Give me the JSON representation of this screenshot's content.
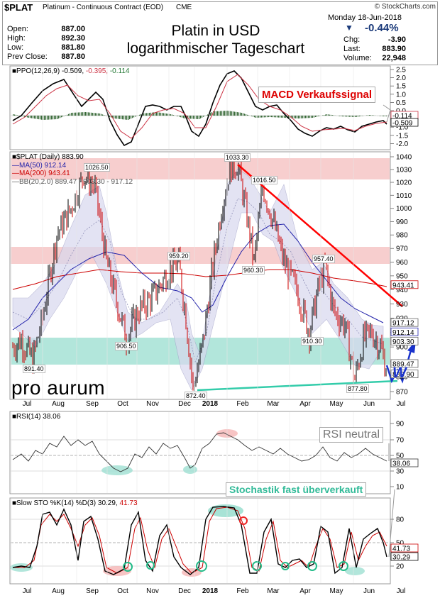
{
  "header": {
    "symbol": "$PLAT",
    "name": "Platinum - Continuous Contract (EOD)",
    "exchange": "CME",
    "copyright": "© StockCharts.com",
    "date": "Monday  18-Jun-2018",
    "change_pct": "-0.44%",
    "title_line1": "Platin in USD",
    "title_line2": "logarithmischer Tageschart",
    "left_stats": [
      {
        "label": "Open:",
        "value": "887.00"
      },
      {
        "label": "High:",
        "value": "892.30"
      },
      {
        "label": "Low:",
        "value": "881.80"
      },
      {
        "label": "Prev Close:",
        "value": "887.80"
      }
    ],
    "right_stats": [
      {
        "label": "Chg:",
        "value": "-3.90"
      },
      {
        "label": "Last:",
        "value": "883.90"
      },
      {
        "label": "Volume:",
        "value": "22,948"
      }
    ]
  },
  "ppo_panel": {
    "legend_name": "PPO(12,26,9)",
    "legend_v1": "-0.509,",
    "legend_v2": "-0.395,",
    "legend_v3": "-0.114",
    "annotation": "MACD Verkaufssignal",
    "ticks": [
      "2.5",
      "2.0",
      "1.5",
      "1.0",
      "0.5",
      "0.0",
      "-0.5",
      "-1.0",
      "-1.5",
      "-2.0"
    ],
    "last_labels": [
      "-0.114",
      "-0.509"
    ]
  },
  "price_panel": {
    "legend_title": "$PLAT (Daily) 883.90",
    "legend_ma50": "MA(50) 912.14",
    "legend_ma200": "MA(200) 943.41",
    "legend_bb": "BB(20,2.0) 889.47 - 903.30 - 917.12",
    "logo": "pro aurum",
    "w_label": "W",
    "ticks": [
      "1040",
      "1030",
      "1020",
      "1010",
      "1000",
      "990",
      "980",
      "970",
      "960",
      "950",
      "940",
      "930",
      "920",
      "910",
      "900",
      "890",
      "880",
      "870"
    ],
    "last_labels": [
      "943.41",
      "917.12",
      "912.14",
      "903.30",
      "889.47",
      "883.90"
    ],
    "annotations": [
      "1033.30",
      "1026.50",
      "1016.50",
      "959.20",
      "957.40",
      "960.30",
      "906.50",
      "910.30",
      "891.40",
      "872.40",
      "877.80"
    ]
  },
  "rsi_panel": {
    "legend": "RSI(14) 38.06",
    "annotation": "RSI neutral",
    "ticks": [
      "90",
      "70",
      "50",
      "30",
      "10"
    ],
    "last_label": "38.06"
  },
  "sto_panel": {
    "legend_name": "Slow STO %K(14) %D(3)",
    "legend_v1": "30.29,",
    "legend_v2": "41.73",
    "annotation": "Stochastik fast überverkauft",
    "ticks": [
      "80",
      "50",
      "20"
    ],
    "last_labels": [
      "41.73",
      "30.29"
    ]
  },
  "months": [
    "Jul",
    "Aug",
    "Sep",
    "Oct",
    "Nov",
    "Dec",
    "2018",
    "Feb",
    "Mar",
    "Apr",
    "May",
    "Jun",
    "Jul"
  ],
  "colors": {
    "price_up": "#000000",
    "price_down": "#cc0000",
    "ma50": "#2222aa",
    "ma200": "#cc0000",
    "bollinger_fill": "#dcdcf0",
    "resistance_zone": "#f5b5b5",
    "support_zone": "#8fdccc",
    "trendline_down": "#ff0000",
    "trendline_up": "#33ccaa",
    "annotation_blue": "#1a33cc"
  },
  "chart_data": {
    "type": "line",
    "scale": "log",
    "period": "Jul 2017 – Jun 2018",
    "key_levels": [
      {
        "date": "Jul 2017",
        "price": 891.4
      },
      {
        "date": "Sep 2017",
        "price": 1026.5
      },
      {
        "date": "Oct 2017",
        "price": 906.5
      },
      {
        "date": "Nov 2017",
        "price": 959.2
      },
      {
        "date": "Dec 2017",
        "price": 872.4
      },
      {
        "date": "Jan 2018",
        "price": 1033.3
      },
      {
        "date": "Feb 2018",
        "price": 1016.5
      },
      {
        "date": "Mar 2018",
        "price": 960.3
      },
      {
        "date": "Apr 2018",
        "price": 910.3
      },
      {
        "date": "Apr 2018",
        "price": 957.4
      },
      {
        "date": "May 2018",
        "price": 877.8
      },
      {
        "date": "Jun 2018",
        "price": 883.9
      }
    ],
    "ylim": [
      865,
      1045
    ],
    "last": {
      "price": 883.9,
      "ma50": 912.14,
      "ma200": 943.41,
      "bb_lower": 889.47,
      "bb_mid": 903.3,
      "bb_upper": 917.12,
      "rsi": 38.06,
      "sto_k": 30.29,
      "sto_d": 41.73,
      "ppo": -0.509,
      "ppo_signal": -0.395,
      "ppo_hist": -0.114
    }
  }
}
